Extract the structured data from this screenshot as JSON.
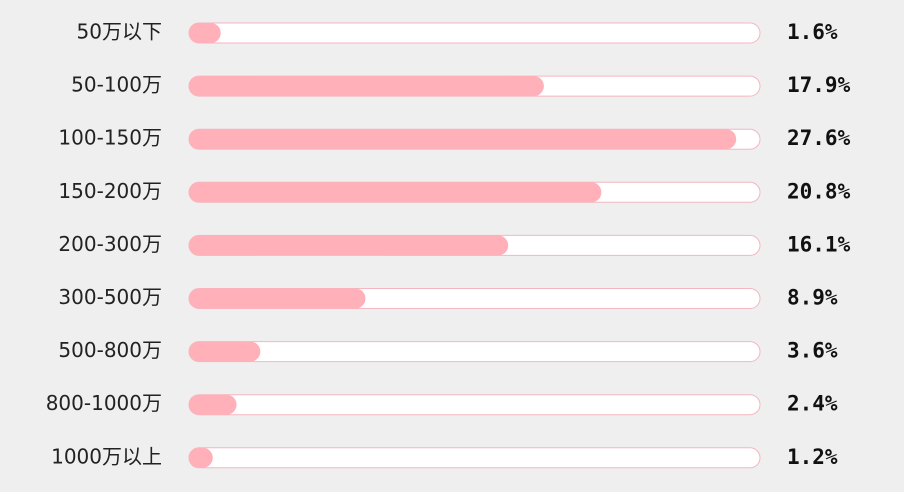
{
  "chart_data": {
    "type": "bar",
    "orientation": "horizontal",
    "categories": [
      "50万以下",
      "50-100万",
      "100-150万",
      "150-200万",
      "200-300万",
      "300-500万",
      "500-800万",
      "800-1000万",
      "1000万以上"
    ],
    "values": [
      1.6,
      17.9,
      27.6,
      20.8,
      16.1,
      8.9,
      3.6,
      2.4,
      1.2
    ],
    "value_labels": [
      "1.6%",
      "17.9%",
      "27.6%",
      "20.8%",
      "16.1%",
      "8.9%",
      "3.6%",
      "2.4%",
      "1.2%"
    ],
    "xlim": [
      0,
      28.8
    ],
    "color": "#ffb0b8",
    "track_color": "#ffffff",
    "track_border": "#f4b6c0"
  }
}
